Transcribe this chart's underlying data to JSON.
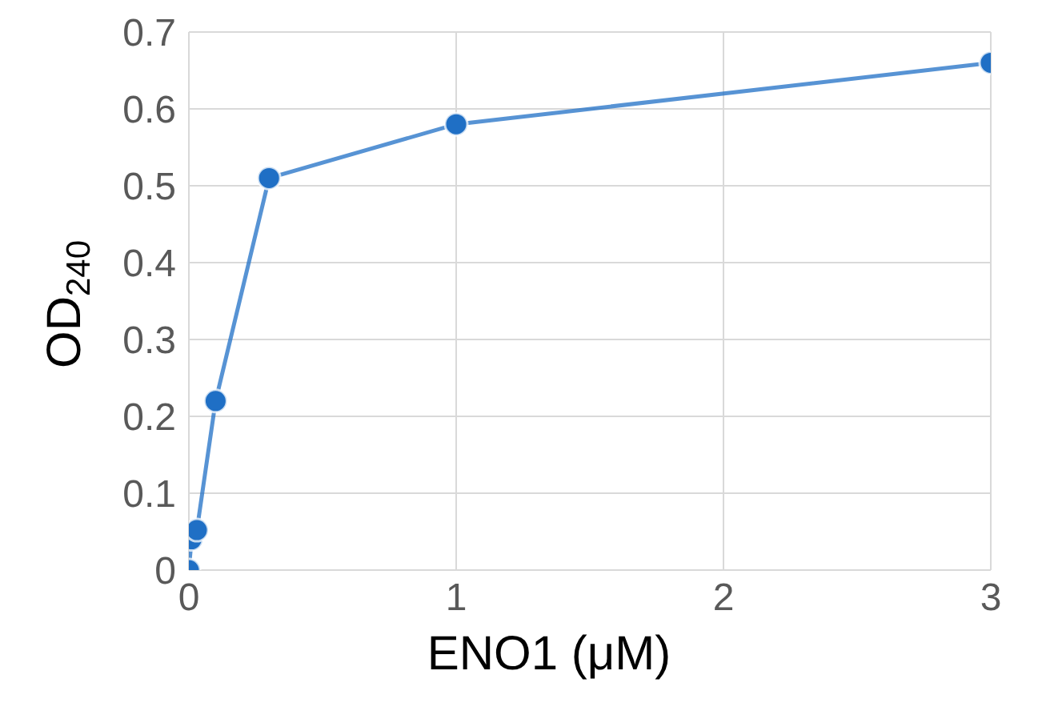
{
  "chart_data": {
    "type": "line",
    "xlabel": "ENO1 (μM)",
    "ylabel": "OD$_{240}$",
    "x": [
      0,
      0.01,
      0.03,
      0.1,
      0.3,
      1,
      3
    ],
    "series": [
      {
        "color": "#1f6fc5",
        "values": [
          0,
          0.04,
          0.052,
          0.22,
          0.51,
          0.58,
          0.66
        ]
      }
    ],
    "xlim": [
      0,
      3
    ],
    "xticks": [
      0,
      1,
      2,
      3
    ],
    "ylim": [
      0,
      0.7
    ],
    "yticks": [
      0,
      0.1,
      0.2,
      0.3,
      0.4,
      0.5,
      0.6,
      0.7
    ],
    "grid": true,
    "marker": "circle",
    "line_style": "solid",
    "legend": false
  }
}
